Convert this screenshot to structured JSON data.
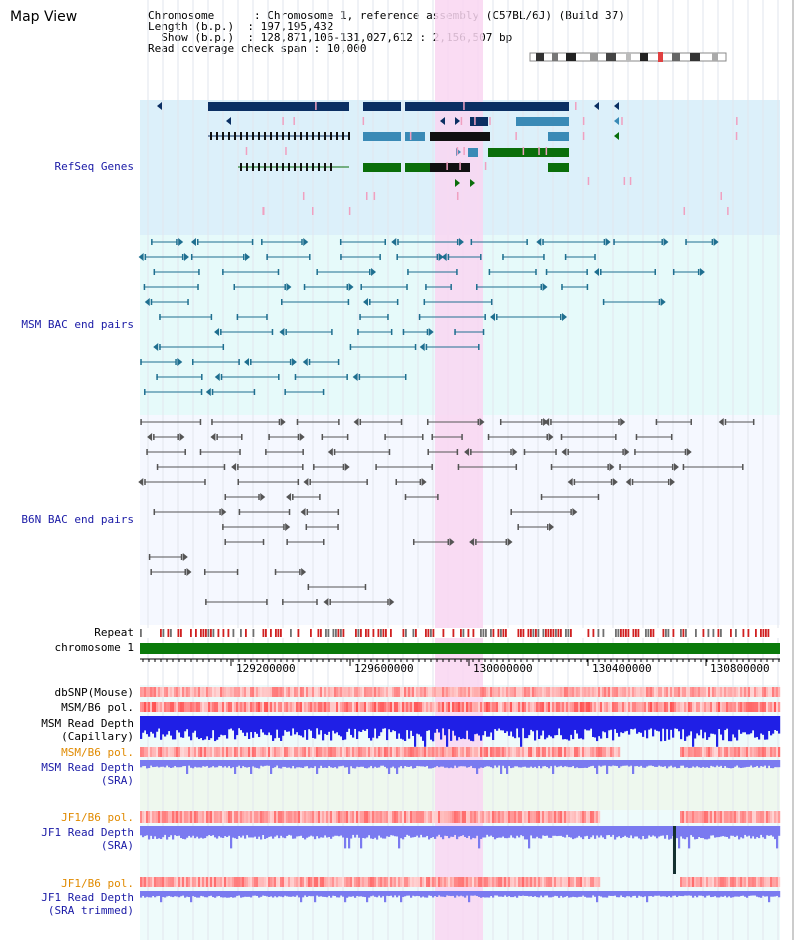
{
  "title": "Map View",
  "header": {
    "line1": "Chromosome      : Chromosome 1, reference assembly (C57BL/6J) (Build 37)",
    "line2": "Length (b.p.)  : 197,195,432",
    "line3": "  Show (b.p.)  : 128,871,106-131,027,612 : 2,156,507 bp",
    "line4": "Read coverage check span : 10,000"
  },
  "sections": {
    "refseq": "RefSeq Genes",
    "msm_bac": "MSM BAC end pairs",
    "b6n_bac": "B6N BAC end pairs"
  },
  "tracks": {
    "repeat": "Repeat",
    "chromosome": "chromosome 1",
    "dbsnp": "dbSNP(Mouse)",
    "msm_b6_pol": "MSM/B6 pol.",
    "msm_depth_cap_1": "MSM Read Depth",
    "msm_depth_cap_2": "(Capillary)",
    "msm_b6_pol2": "MSM/B6 pol.",
    "msm_depth_sra_1": "MSM Read Depth",
    "msm_depth_sra_2": "(SRA)",
    "jf1_b6_pol": "JF1/B6 pol.",
    "jf1_depth_1": "JF1 Read Depth",
    "jf1_depth_2": "(SRA)",
    "jf1_b6_pol2": "JF1/B6 pol.",
    "jf1_trim_1": "JF1 Read Depth",
    "jf1_trim_2": "(SRA trimmed)"
  },
  "ruler": {
    "ticks": [
      "129200000",
      "129600000",
      "130000000",
      "130400000",
      "130800000"
    ]
  },
  "colors": {
    "refseq_bg": "#dcf0fa",
    "msm_bg": "#e6fafa",
    "b6n_bg": "#f5f8ff",
    "highlight": "#f9d6f1",
    "gene_dark": "#0b2f63",
    "gene_mid": "#3a8ab6",
    "gene_green": "#0a6e0a",
    "msm_line": "#1f6f90",
    "b6n_line": "#555555",
    "label_orange": "#e08a00",
    "label_blue": "#1a1aa6",
    "depth_blue": "#1f1fe6",
    "depth_light": "#7a7af0"
  }
}
